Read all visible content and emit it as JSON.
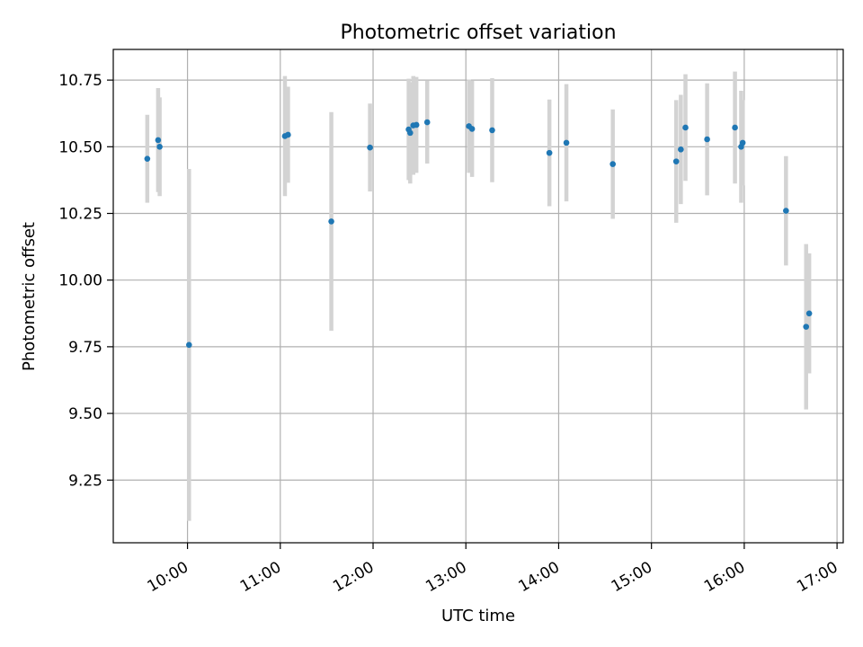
{
  "chart_data": {
    "type": "scatter",
    "title": "Photometric offset variation",
    "xlabel": "UTC time",
    "ylabel": "Photometric offset",
    "x_ticks": [
      "10:00",
      "11:00",
      "12:00",
      "13:00",
      "14:00",
      "15:00",
      "16:00",
      "17:00"
    ],
    "y_ticks": [
      "9.25",
      "9.50",
      "9.75",
      "10.00",
      "10.25",
      "10.50",
      "10.75"
    ],
    "xlim": [
      "09:12",
      "17:04"
    ],
    "ylim": [
      9.015,
      10.865
    ],
    "grid": true,
    "point_color": "#1f77b4",
    "errorbar_color": "#d3d3d3",
    "points": [
      {
        "x": "09:34",
        "y": 10.455,
        "err": 0.165
      },
      {
        "x": "09:41",
        "y": 10.525,
        "err": 0.195
      },
      {
        "x": "09:42",
        "y": 10.5,
        "err": 0.185
      },
      {
        "x": "10:01",
        "y": 9.757,
        "err": 0.66
      },
      {
        "x": "11:03",
        "y": 10.54,
        "err": 0.225
      },
      {
        "x": "11:05",
        "y": 10.545,
        "err": 0.18
      },
      {
        "x": "11:33",
        "y": 10.22,
        "err": 0.41
      },
      {
        "x": "11:58",
        "y": 10.497,
        "err": 0.165
      },
      {
        "x": "12:23",
        "y": 10.565,
        "err": 0.19
      },
      {
        "x": "12:24",
        "y": 10.552,
        "err": 0.19
      },
      {
        "x": "12:26",
        "y": 10.58,
        "err": 0.185
      },
      {
        "x": "12:28",
        "y": 10.582,
        "err": 0.18
      },
      {
        "x": "12:35",
        "y": 10.592,
        "err": 0.155
      },
      {
        "x": "13:02",
        "y": 10.577,
        "err": 0.175
      },
      {
        "x": "13:04",
        "y": 10.567,
        "err": 0.18
      },
      {
        "x": "13:17",
        "y": 10.562,
        "err": 0.195
      },
      {
        "x": "13:54",
        "y": 10.477,
        "err": 0.2
      },
      {
        "x": "14:05",
        "y": 10.515,
        "err": 0.22
      },
      {
        "x": "14:35",
        "y": 10.435,
        "err": 0.205
      },
      {
        "x": "15:16",
        "y": 10.445,
        "err": 0.23
      },
      {
        "x": "15:19",
        "y": 10.49,
        "err": 0.205
      },
      {
        "x": "15:22",
        "y": 10.572,
        "err": 0.2
      },
      {
        "x": "15:36",
        "y": 10.528,
        "err": 0.21
      },
      {
        "x": "15:54",
        "y": 10.572,
        "err": 0.21
      },
      {
        "x": "15:58",
        "y": 10.5,
        "err": 0.21
      },
      {
        "x": "15:59",
        "y": 10.515,
        "err": 0.16
      },
      {
        "x": "16:27",
        "y": 10.26,
        "err": 0.205
      },
      {
        "x": "16:40",
        "y": 9.825,
        "err": 0.31
      },
      {
        "x": "16:42",
        "y": 9.875,
        "err": 0.225
      }
    ]
  }
}
